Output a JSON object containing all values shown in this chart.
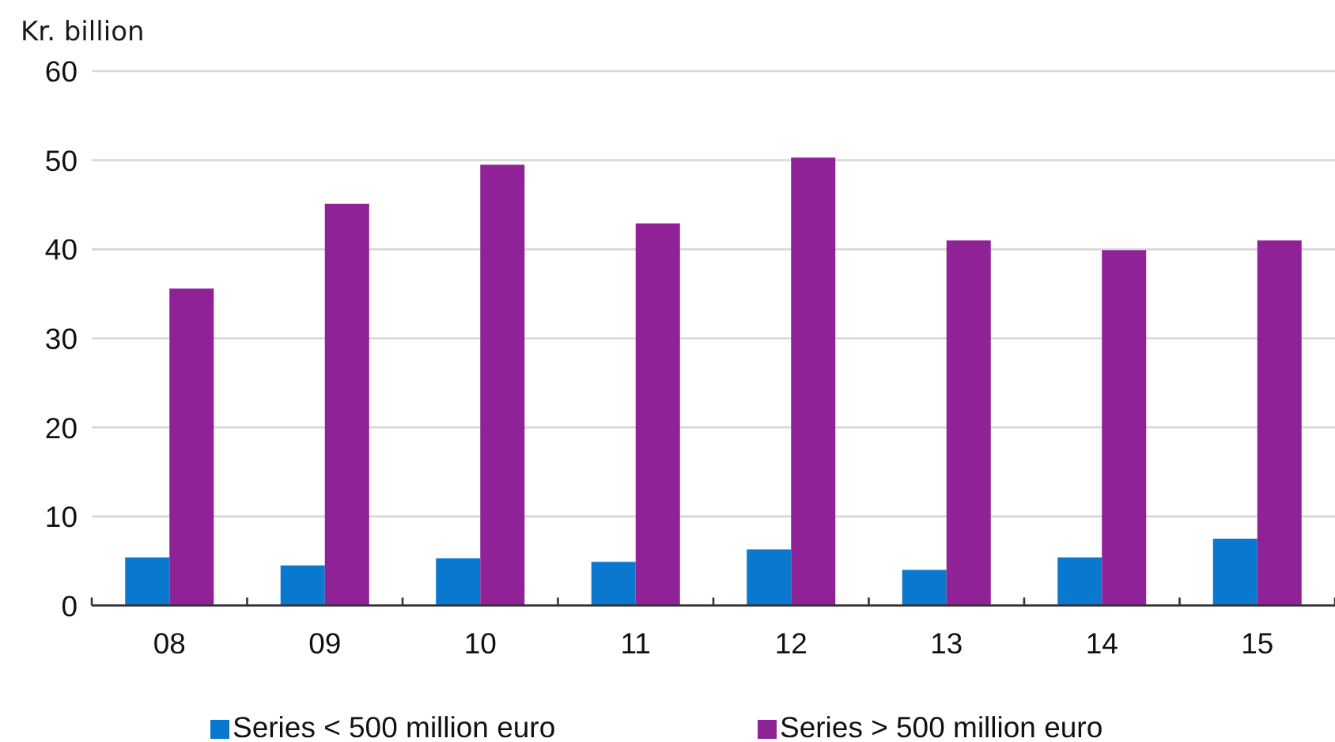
{
  "chart_data": {
    "type": "bar",
    "ylabel": "Kr. billion",
    "categories": [
      "08",
      "09",
      "10",
      "11",
      "12",
      "13",
      "14",
      "15"
    ],
    "series": [
      {
        "name": "Series < 500 million euro",
        "color": "#0a78cf",
        "values": [
          5.4,
          4.5,
          5.3,
          4.9,
          6.3,
          4.0,
          5.4,
          7.5
        ]
      },
      {
        "name": "Series > 500 million euro",
        "color": "#8f2296",
        "values": [
          35.6,
          45.1,
          49.5,
          42.9,
          50.3,
          41.0,
          39.9,
          41.0
        ]
      }
    ],
    "ylim": [
      0,
      60
    ],
    "yticks": [
      0,
      10,
      20,
      30,
      40,
      50,
      60
    ],
    "grid": "y",
    "legend": "bottom"
  }
}
